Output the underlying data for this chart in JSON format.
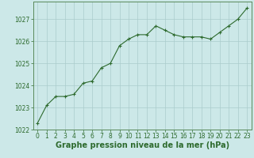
{
  "x": [
    0,
    1,
    2,
    3,
    4,
    5,
    6,
    7,
    8,
    9,
    10,
    11,
    12,
    13,
    14,
    15,
    16,
    17,
    18,
    19,
    20,
    21,
    22,
    23
  ],
  "y": [
    1022.3,
    1023.1,
    1023.5,
    1023.5,
    1023.6,
    1024.1,
    1024.2,
    1024.8,
    1025.0,
    1025.8,
    1026.1,
    1026.3,
    1026.3,
    1026.7,
    1026.5,
    1026.3,
    1026.2,
    1026.2,
    1026.2,
    1026.1,
    1026.4,
    1026.7,
    1027.0,
    1027.5
  ],
  "line_color": "#2d6a2d",
  "marker_color": "#2d6a2d",
  "bg_color": "#cce8e8",
  "grid_color": "#aacccc",
  "xlabel": "Graphe pression niveau de la mer (hPa)",
  "xlabel_fontsize": 7,
  "xlabel_color": "#2d6a2d",
  "ylim": [
    1022,
    1027.8
  ],
  "yticks": [
    1022,
    1023,
    1024,
    1025,
    1026,
    1027
  ],
  "xticks": [
    0,
    1,
    2,
    3,
    4,
    5,
    6,
    7,
    8,
    9,
    10,
    11,
    12,
    13,
    14,
    15,
    16,
    17,
    18,
    19,
    20,
    21,
    22,
    23
  ],
  "tick_fontsize": 5.5,
  "tick_color": "#2d6a2d",
  "line_width": 0.8,
  "marker_size": 2.5
}
